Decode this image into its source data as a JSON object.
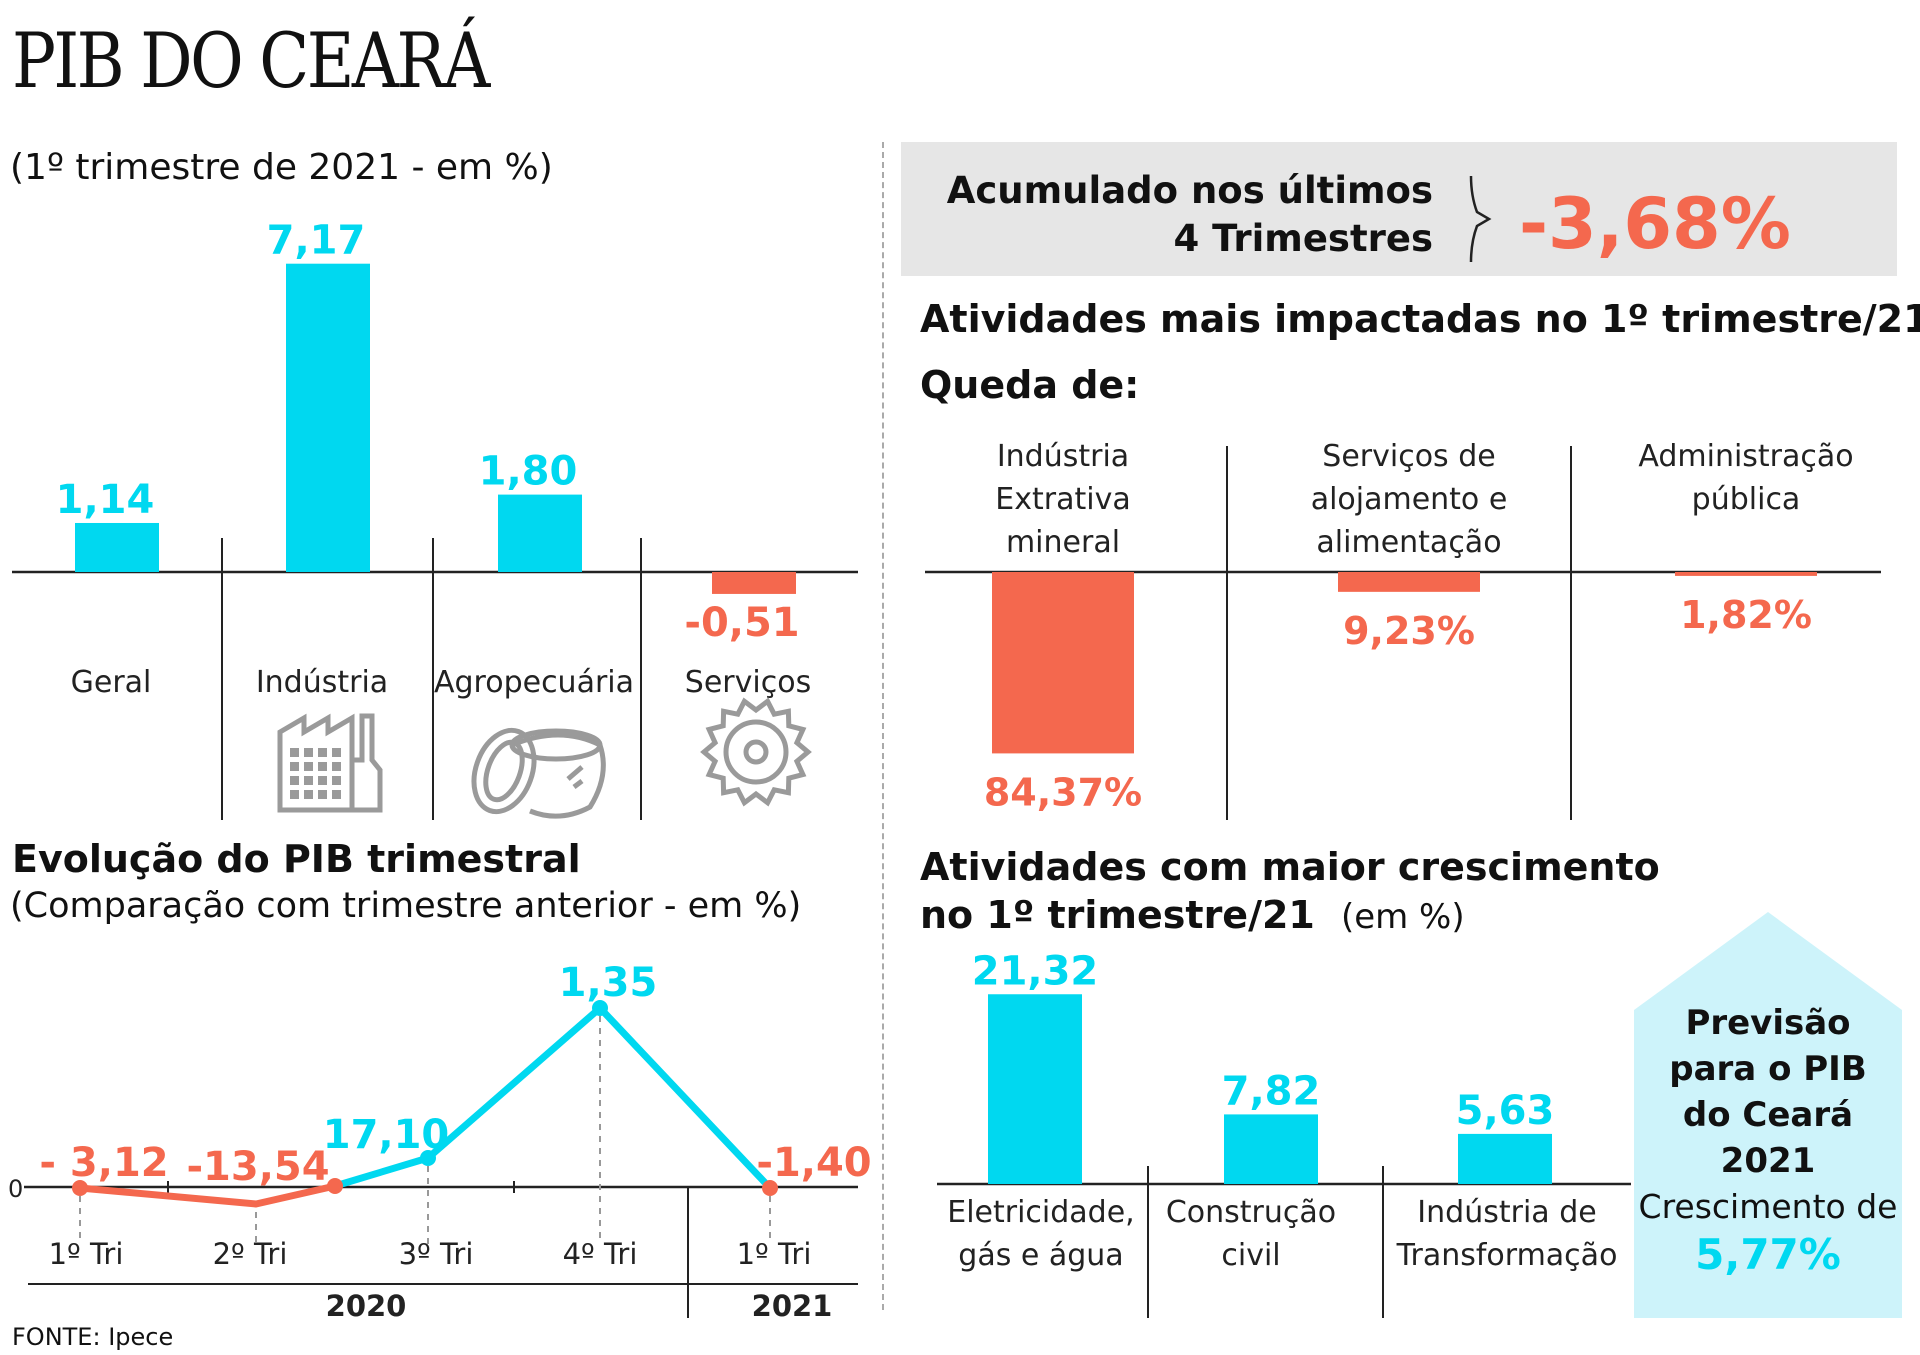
{
  "title": "PIB DO CEARÁ",
  "subtitle": "(1º trimestre de 2021 - em %)",
  "source": "FONTE: Ipece",
  "colors": {
    "positive": "#00d8f0",
    "negative": "#f4684e",
    "axis": "#222222",
    "panel": "#e6e6e6",
    "forecast": "#cdf3fa",
    "icon": "#9a9a9a"
  },
  "summary": {
    "label_line1": "Acumulado nos últimos",
    "label_line2": "4 Trimestres",
    "value": "-3,68%"
  },
  "forecast": {
    "line1": "Previsão",
    "line2": "para o PIB",
    "line3": "do Ceará 2021",
    "line4": "Crescimento de",
    "value": "5,77%"
  },
  "impacted_title": "Atividades mais impactadas no 1º trimestre/21",
  "impacted_subtitle": "Queda de:",
  "growth_title_line1": "Atividades com maior crescimento",
  "growth_title_line2": "no 1º trimestre/21",
  "growth_unit": "(em %)",
  "evolution_title": "Evolução do PIB trimestral",
  "evolution_subtitle": "(Comparação com trimestre anterior - em %)",
  "chart_data": [
    {
      "type": "bar",
      "title": "(1º trimestre de 2021 - em %)",
      "categories": [
        "Geral",
        "Indústria",
        "Agropecuária",
        "Serviços"
      ],
      "icons": [
        "",
        "factory-icon",
        "coconut-icon",
        "gear-icon"
      ],
      "values": [
        1.14,
        7.17,
        1.8,
        -0.51
      ],
      "labels": [
        "1,14",
        "7,17",
        "1,80",
        "-0,51"
      ]
    },
    {
      "type": "bar",
      "title": "Atividades mais impactadas no 1º trimestre/21",
      "categories": [
        [
          "Indústria",
          "Extrativa",
          "mineral"
        ],
        [
          "Serviços de",
          "alojamento e",
          "alimentação"
        ],
        [
          "Administração",
          "pública"
        ]
      ],
      "values": [
        -84.37,
        -9.23,
        -1.82
      ],
      "labels": [
        "84,37%",
        "9,23%",
        "1,82%"
      ]
    },
    {
      "type": "bar",
      "title": "Atividades com maior crescimento no 1º trimestre/21 (em %)",
      "categories": [
        [
          "Eletricidade,",
          "gás e água"
        ],
        [
          "Construção",
          "civil"
        ],
        [
          "Indústria de",
          "Transformação"
        ]
      ],
      "values": [
        21.32,
        7.82,
        5.63
      ],
      "labels": [
        "21,32",
        "7,82",
        "5,63"
      ]
    },
    {
      "type": "line",
      "title": "Evolução do PIB trimestral",
      "categories": [
        "1º Tri",
        "2º Tri",
        "3º Tri",
        "4º Tri",
        "1º Tri"
      ],
      "years": [
        {
          "label": "2020"
        },
        {
          "label": "2021"
        }
      ],
      "zero_label": "0",
      "values": [
        -3.12,
        -13.54,
        17.1,
        1.35,
        -1.4
      ],
      "labels": [
        "- 3,12",
        "-13,54",
        "17,10",
        "1,35",
        "-1,40"
      ]
    }
  ]
}
